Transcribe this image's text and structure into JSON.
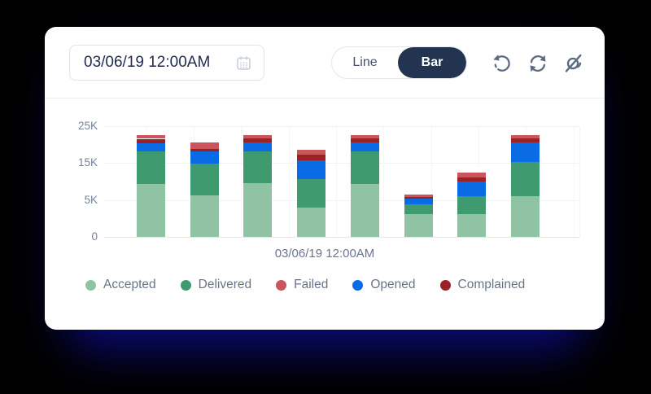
{
  "header": {
    "datetime_value": "03/06/19 12:00AM",
    "toggle": {
      "line_label": "Line",
      "bar_label": "Bar",
      "selected": "Bar"
    },
    "icons": [
      "undo-icon",
      "refresh-icon",
      "hide-graph-icon"
    ]
  },
  "colors": {
    "page_background": "#000000",
    "card_glow": "#0a0a78",
    "card_background": "#ffffff",
    "toggle_selected_background": "#223450",
    "toggle_selected_text": "#ffffff",
    "accent_navy_text": "#1e2c4f",
    "muted_text": "#67748c",
    "accepted": "#8FC3A4",
    "delivered": "#3F9A70",
    "failed": "#CB555D",
    "opened": "#0A6CE4",
    "complained": "#9C2125"
  },
  "chart_data": {
    "type": "bar",
    "stacked": true,
    "bar_count": 8,
    "values_unit": "thousands",
    "x_label": "03/06/19 12:00AM",
    "y_ticks": [
      {
        "label": "25K",
        "value": 25
      },
      {
        "label": "15K",
        "value": 15
      },
      {
        "label": "5K",
        "value": 5
      },
      {
        "label": "0",
        "value": 0
      }
    ],
    "ylim": [
      0,
      25
    ],
    "y_axis_note": "ticks 0, 5K, 15K, 25K are equally spaced (non-linear bands)",
    "grid": "on",
    "legend_position": "bottom-left",
    "series": [
      {
        "name": "Accepted",
        "color": "#8FC3A4",
        "values": [
          9.3,
          6.2,
          9.5,
          4.0,
          9.3,
          3.1,
          3.1,
          6.1
        ]
      },
      {
        "name": "Delivered",
        "color": "#3F9A70",
        "values": [
          8.8,
          8.6,
          8.6,
          6.6,
          8.8,
          1.3,
          3.0,
          9.3
        ]
      },
      {
        "name": "Failed",
        "color": "#CB555D",
        "values": [
          1.0,
          1.9,
          1.0,
          1.4,
          1.0,
          0.5,
          1.2,
          0.8
        ]
      },
      {
        "name": "Opened",
        "color": "#0A6CE4",
        "values": [
          2.3,
          3.4,
          2.4,
          5.1,
          2.4,
          1.0,
          4.0,
          5.3
        ]
      },
      {
        "name": "Complained",
        "color": "#9C2125",
        "values": [
          1.2,
          0.6,
          1.1,
          1.6,
          1.1,
          0.5,
          1.1,
          1.1
        ]
      }
    ],
    "stack_order": [
      "Accepted",
      "Delivered",
      "Opened",
      "Complained",
      "Failed"
    ],
    "totals": [
      22.6,
      20.7,
      22.6,
      18.7,
      22.6,
      6.4,
      12.4,
      22.6
    ]
  }
}
